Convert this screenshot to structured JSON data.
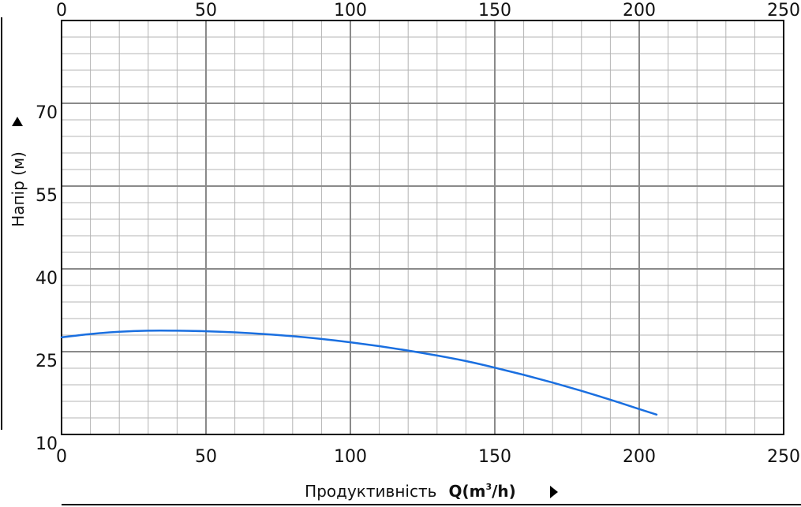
{
  "chart_data": {
    "type": "line",
    "xlabel_text": "Продуктивність",
    "xlabel_unit_prefix": "Q(m",
    "xlabel_unit_sup": "3",
    "xlabel_unit_suffix": "/h)",
    "ylabel": "Напір (м)",
    "xlim": [
      0,
      250
    ],
    "ylim": [
      10,
      85
    ],
    "x_ticks": [
      "0",
      "50",
      "100",
      "150",
      "200",
      "250"
    ],
    "y_ticks": [
      "10",
      "25",
      "40",
      "55",
      "70"
    ],
    "y_tick_values": [
      10,
      25,
      40,
      55,
      70
    ],
    "x_tick_values": [
      0,
      50,
      100,
      150,
      200,
      250
    ],
    "grid": true,
    "series": [
      {
        "color": "#1a6fe0",
        "x": [
          0,
          10,
          20,
          30,
          40,
          50,
          60,
          70,
          80,
          90,
          100,
          110,
          120,
          130,
          140,
          150,
          160,
          170,
          180,
          190,
          200,
          206
        ],
        "y": [
          27.6,
          28.2,
          28.6,
          28.8,
          28.8,
          28.7,
          28.5,
          28.2,
          27.8,
          27.3,
          26.7,
          26.0,
          25.2,
          24.3,
          23.3,
          22.1,
          20.8,
          19.4,
          17.9,
          16.3,
          14.6,
          13.6
        ]
      }
    ]
  }
}
